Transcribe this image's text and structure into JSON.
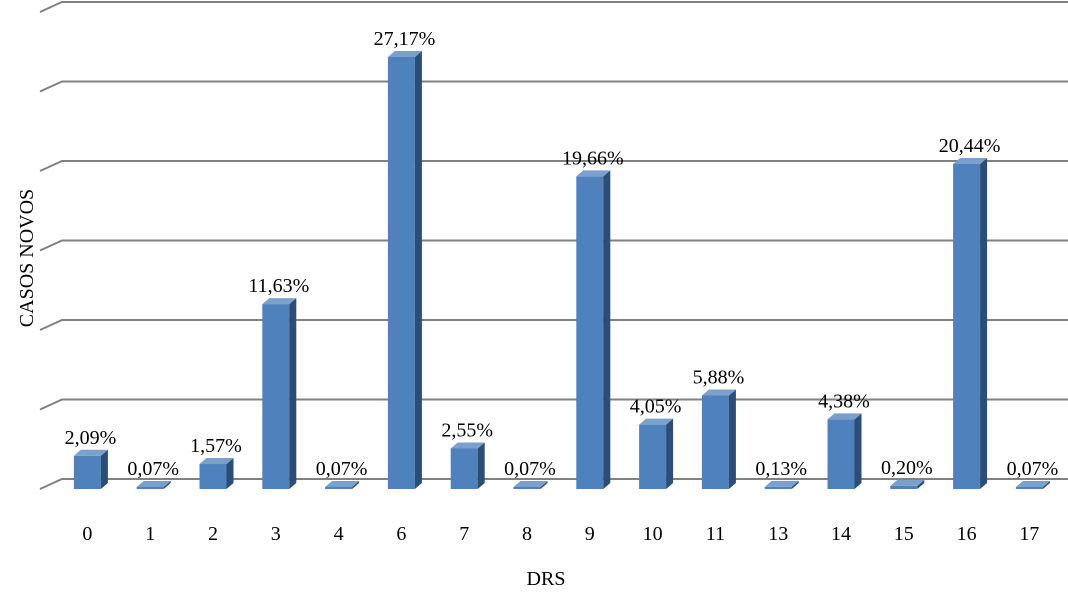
{
  "chart_data": {
    "type": "bar",
    "xlabel": "DRS",
    "ylabel": "CASOS NOVOS",
    "categories": [
      "0",
      "1",
      "2",
      "3",
      "4",
      "6",
      "7",
      "8",
      "9",
      "10",
      "11",
      "13",
      "14",
      "15",
      "16",
      "17"
    ],
    "values": [
      2.09,
      0.07,
      1.57,
      11.63,
      0.07,
      27.17,
      2.55,
      0.07,
      19.66,
      4.05,
      5.88,
      0.13,
      4.38,
      0.2,
      20.44,
      0.07
    ],
    "data_labels": [
      "2,09%",
      "0,07%",
      "1,57%",
      "11,63%",
      "0,07%",
      "27,17%",
      "2,55%",
      "0,07%",
      "19,66%",
      "4,05%",
      "5,88%",
      "0,13%",
      "4,38%",
      "0,20%",
      "20,44%",
      "0,07%"
    ],
    "ylim": [
      0,
      30
    ],
    "y_tick_step": 5,
    "y_tick_labels_shown": false,
    "grid": true,
    "style": "3d-column",
    "colors": {
      "bar_front": "#4F81BD",
      "bar_side": "#2C4D75",
      "bar_top": "#7BA0CD",
      "grid": "#808080"
    }
  }
}
